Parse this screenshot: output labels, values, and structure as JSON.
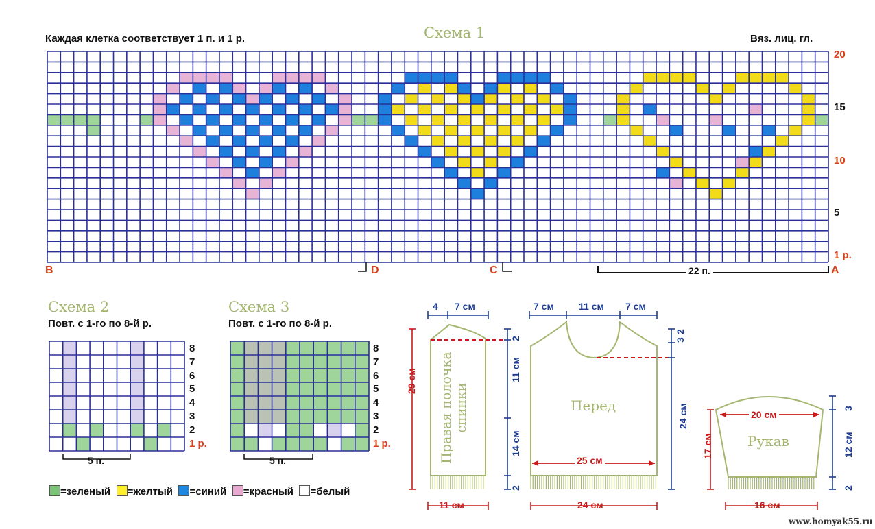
{
  "scheme1": {
    "title": "Схема 1",
    "note": "Каждая клетка соответствует 1 п. и 1 р.",
    "stitch_note": "Вяз. лиц. гл.",
    "row_labels": [
      "20",
      "15",
      "10",
      "5",
      "1 р."
    ],
    "letters": {
      "b": "B",
      "d": "D",
      "c": "C",
      "a": "A"
    },
    "repeat_label": "22 п."
  },
  "scheme2": {
    "title": "Схема 2",
    "note": "Повт. с 1-го по 8-й р.",
    "row_labels": [
      "8",
      "7",
      "6",
      "5",
      "4",
      "3",
      "2",
      "1 р."
    ],
    "repeat_label": "5 п."
  },
  "scheme3": {
    "title": "Схема 3",
    "note": "Повт. с 1-го по 8-й р.",
    "row_labels": [
      "8",
      "7",
      "6",
      "5",
      "4",
      "3",
      "2",
      "1 р."
    ],
    "repeat_label": "5 п."
  },
  "legend": [
    {
      "label": "=зеленый",
      "color": "#7cc47a"
    },
    {
      "label": "=желтый",
      "color": "#ffef2a"
    },
    {
      "label": "=синий",
      "color": "#1e88e0"
    },
    {
      "label": "=красный",
      "color": "#e7a9cf"
    },
    {
      "label": "=белый",
      "color": "#ffffff"
    }
  ],
  "colors": {
    "grid_line": "#2a2f9a",
    "green": "#9fd49a",
    "yellow": "#f2dc1a",
    "blue": "#1e80dc",
    "pink": "#e8b4d6",
    "white": "#ffffff",
    "olive": "#a4b66f",
    "grey": "#b9c2b4",
    "lilac": "#d9d2ee"
  },
  "pieces": {
    "back": {
      "label": "Правая полочка спинки",
      "top_dims": [
        "4",
        "7 см"
      ],
      "right_dims": [
        "2",
        "11 см",
        "14 см",
        "2"
      ],
      "left_dim": "29 см",
      "bottom_dim": "11 см"
    },
    "front": {
      "label": "Перед",
      "top_dims": [
        "7 см",
        "11 см",
        "7 см"
      ],
      "right_dims": [
        "3",
        "2",
        "24 см"
      ],
      "inner_dim": "25 см",
      "bottom_dim": "24 см"
    },
    "sleeve": {
      "label": "Рукав",
      "inner_dim": "20 см",
      "left_dim": "17 см",
      "right_dims": [
        "3",
        "12 см",
        "2"
      ],
      "bottom_dim": "16 см"
    }
  },
  "watermark": "www.homyak55.ru"
}
